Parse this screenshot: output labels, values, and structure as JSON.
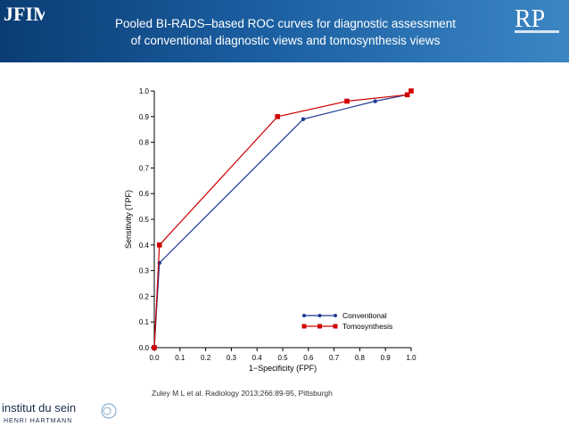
{
  "header": {
    "title_line1": "Pooled BI-RADS–based ROC curves for diagnostic assessment",
    "title_line2": "of conventional diagnostic views and tomosynthesis views",
    "left_logo": "JFIM",
    "right_logo": "RP"
  },
  "footer": {
    "citation": "Zuley M L et al. Radiology 2013;266:89-95, Pittsburgh",
    "logo_line1": "institut du sein",
    "logo_line2": "HENRI HARTMANN"
  },
  "colors": {
    "conventional": "#1f3a93",
    "tomosynthesis": "#d00000",
    "header_dark": "#0b3d74",
    "header_light": "#3c86c4"
  },
  "chart_data": {
    "type": "line",
    "xlabel": "1−Specificity (FPF)",
    "ylabel": "Sensitivity (TPF)",
    "xlim": [
      0,
      1
    ],
    "ylim": [
      0,
      1
    ],
    "xticks": [
      "0.0",
      "0.1",
      "0.2",
      "0.3",
      "0.4",
      "0.5",
      "0.6",
      "0.7",
      "0.8",
      "0.9",
      "1.0"
    ],
    "yticks": [
      "0.0",
      "0.1",
      "0.2",
      "0.3",
      "0.4",
      "0.5",
      "0.6",
      "0.7",
      "0.8",
      "0.9",
      "1.0"
    ],
    "legend_position": "bottom-right",
    "series": [
      {
        "name": "Conventional",
        "marker": "circle",
        "x": [
          0.0,
          0.02,
          0.58,
          0.86,
          0.985,
          1.0
        ],
        "y": [
          0.0,
          0.33,
          0.89,
          0.96,
          0.985,
          1.0
        ]
      },
      {
        "name": "Tomosynthesis",
        "marker": "square",
        "x": [
          0.0,
          0.02,
          0.48,
          0.75,
          0.985,
          1.0
        ],
        "y": [
          0.0,
          0.4,
          0.9,
          0.96,
          0.985,
          1.0
        ]
      }
    ]
  }
}
